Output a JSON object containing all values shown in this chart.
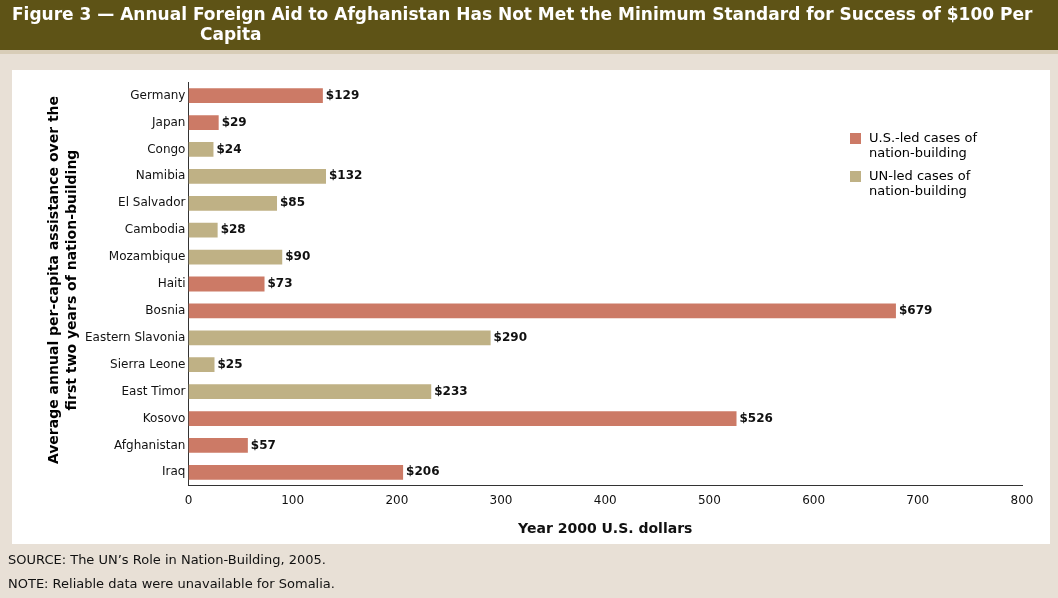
{
  "chart_data": {
    "type": "bar",
    "orientation": "horizontal",
    "title": "Figure 3 —  Annual Foreign Aid to Afghanistan Has Not Met the Minimum Standard for Success of $100 Per Capita",
    "categories": [
      "Germany",
      "Japan",
      "Congo",
      "Namibia",
      "El Salvador",
      "Cambodia",
      "Mozambique",
      "Haiti",
      "Bosnia",
      "Eastern Slavonia",
      "Sierra Leone",
      "East Timor",
      "Kosovo",
      "Afghanistan",
      "Iraq"
    ],
    "series": [
      {
        "name": "U.S.-led cases of nation-building",
        "color": "#cc7a66",
        "values": [
          129,
          29,
          null,
          null,
          null,
          null,
          null,
          73,
          679,
          null,
          null,
          null,
          526,
          57,
          206
        ],
        "value_labels": [
          "$129",
          "$29",
          null,
          null,
          null,
          null,
          null,
          "$73",
          "$679",
          null,
          null,
          null,
          "$526",
          "$57",
          "$206"
        ]
      },
      {
        "name": "UN-led cases of nation-building",
        "color": "#bfb185",
        "values": [
          null,
          null,
          24,
          132,
          85,
          28,
          90,
          null,
          null,
          290,
          25,
          233,
          null,
          null,
          null
        ],
        "value_labels": [
          null,
          null,
          "$24",
          "$132",
          "$85",
          "$28",
          "$90",
          null,
          null,
          "$290",
          "$25",
          "$233",
          null,
          null,
          null
        ]
      }
    ],
    "xlim": [
      0,
      800
    ],
    "xticks": [
      0,
      100,
      200,
      300,
      400,
      500,
      600,
      700,
      800
    ],
    "xlabel": "Year 2000 U.S. dollars",
    "ylabel": "Average annual per-capita assistance over the first two years of nation-building",
    "legend": "top right",
    "grid": false,
    "annotations": [
      "SOURCE: The UN’s Role in Nation-Building, 2005.",
      "NOTE: Reliable data were unavailable for Somalia."
    ]
  }
}
